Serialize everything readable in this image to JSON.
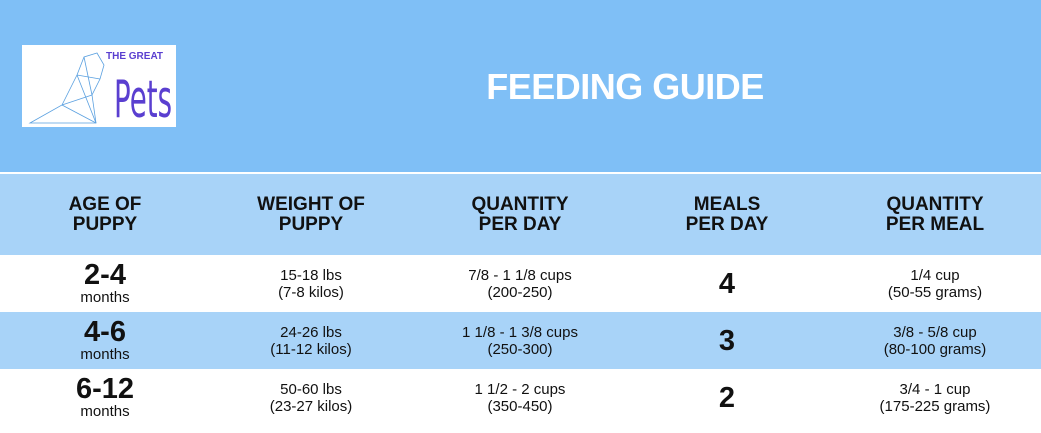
{
  "header": {
    "logo_top": "THE GREAT",
    "logo_main": "Pets",
    "title": "FEEDING GUIDE"
  },
  "table": {
    "columns": [
      [
        "AGE OF",
        "PUPPY"
      ],
      [
        "WEIGHT OF",
        "PUPPY"
      ],
      [
        "QUANTITY",
        "PER DAY"
      ],
      [
        "MEALS",
        "PER DAY"
      ],
      [
        "QUANTITY",
        "PER MEAL"
      ]
    ],
    "rows": [
      {
        "age": "2-4",
        "age_unit": "months",
        "weight": [
          "15-18 lbs",
          "(7-8 kilos)"
        ],
        "per_day": [
          "7/8 - 1 1/8 cups",
          "(200-250)"
        ],
        "meals": "4",
        "per_meal": [
          "1/4 cup",
          "(50-55 grams)"
        ]
      },
      {
        "age": "4-6",
        "age_unit": "months",
        "weight": [
          "24-26 lbs",
          "(11-12 kilos)"
        ],
        "per_day": [
          "1 1/8 - 1 3/8 cups",
          "(250-300)"
        ],
        "meals": "3",
        "per_meal": [
          "3/8 - 5/8 cup",
          "(80-100 grams)"
        ]
      },
      {
        "age": "6-12",
        "age_unit": "months",
        "weight": [
          "50-60 lbs",
          "(23-27 kilos)"
        ],
        "per_day": [
          "1 1/2 - 2 cups",
          "(350-450)"
        ],
        "meals": "2",
        "per_meal": [
          "3/4 - 1 cup",
          "(175-225 grams)"
        ]
      }
    ]
  }
}
